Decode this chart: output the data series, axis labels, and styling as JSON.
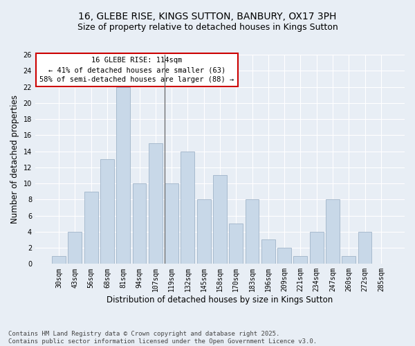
{
  "title": "16, GLEBE RISE, KINGS SUTTON, BANBURY, OX17 3PH",
  "subtitle": "Size of property relative to detached houses in Kings Sutton",
  "xlabel": "Distribution of detached houses by size in Kings Sutton",
  "ylabel": "Number of detached properties",
  "categories": [
    "30sqm",
    "43sqm",
    "56sqm",
    "68sqm",
    "81sqm",
    "94sqm",
    "107sqm",
    "119sqm",
    "132sqm",
    "145sqm",
    "158sqm",
    "170sqm",
    "183sqm",
    "196sqm",
    "209sqm",
    "221sqm",
    "234sqm",
    "247sqm",
    "260sqm",
    "272sqm",
    "285sqm"
  ],
  "values": [
    1,
    4,
    9,
    13,
    22,
    10,
    15,
    10,
    14,
    8,
    11,
    5,
    8,
    3,
    2,
    1,
    4,
    8,
    1,
    4,
    0
  ],
  "bar_color": "#c8d8e8",
  "bar_edgecolor": "#a0b4c8",
  "vline_color": "#666666",
  "annotation_text": "16 GLEBE RISE: 114sqm\n← 41% of detached houses are smaller (63)\n58% of semi-detached houses are larger (88) →",
  "annotation_box_facecolor": "#ffffff",
  "annotation_box_edgecolor": "#cc0000",
  "ylim": [
    0,
    26
  ],
  "yticks": [
    0,
    2,
    4,
    6,
    8,
    10,
    12,
    14,
    16,
    18,
    20,
    22,
    24,
    26
  ],
  "background_color": "#e8eef5",
  "grid_color": "#ffffff",
  "footer": "Contains HM Land Registry data © Crown copyright and database right 2025.\nContains public sector information licensed under the Open Government Licence v3.0.",
  "title_fontsize": 10,
  "subtitle_fontsize": 9,
  "xlabel_fontsize": 8.5,
  "ylabel_fontsize": 8.5,
  "tick_fontsize": 7,
  "annotation_fontsize": 7.5,
  "footer_fontsize": 6.5
}
